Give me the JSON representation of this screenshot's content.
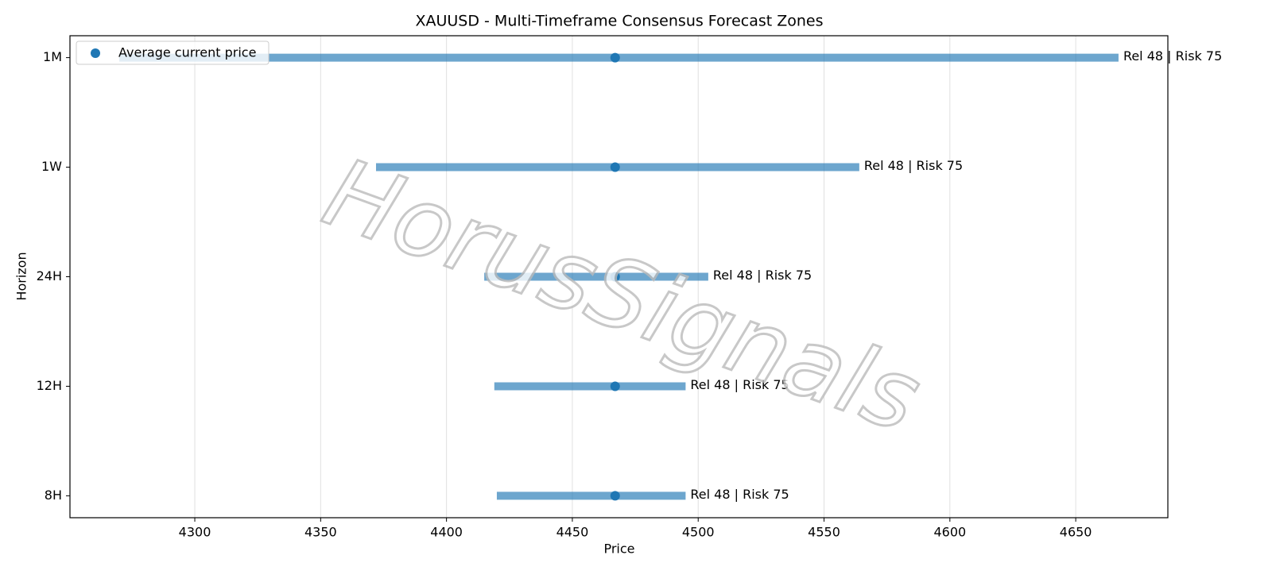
{
  "chart_data": {
    "type": "range",
    "title": "XAUUSD - Multi-Timeframe Consensus Forecast Zones",
    "xlabel": "Price",
    "ylabel": "Horizon",
    "categories": [
      "1M",
      "1W",
      "24H",
      "12H",
      "8H"
    ],
    "low": [
      4270,
      4372,
      4415,
      4419,
      4420
    ],
    "high": [
      4667,
      4564,
      4504,
      4495,
      4495
    ],
    "current": [
      4467,
      4467,
      4467,
      4467,
      4467
    ],
    "annotations": [
      "Rel 48 | Risk 75",
      "Rel 48 | Risk 75",
      "Rel 48 | Risk 75",
      "Rel 48 | Risk 75",
      "Rel 48 | Risk 75"
    ],
    "current_name": "Average current price",
    "color": "#1f77b4",
    "xlim": [
      4250.4,
      4686.6
    ],
    "xticks": [
      4300,
      4350,
      4400,
      4450,
      4500,
      4550,
      4600,
      4650
    ],
    "grid": true,
    "legend": "upper left",
    "watermark": "HorusSignals"
  }
}
